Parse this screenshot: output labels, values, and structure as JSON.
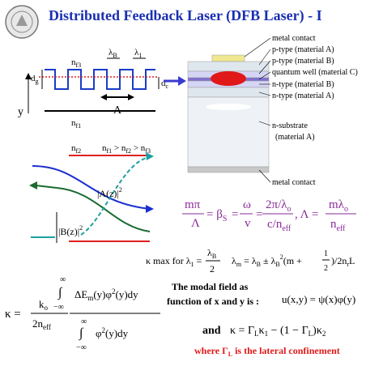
{
  "title": "Distributed Feedback Laser (DFB Laser) - I",
  "grating": {
    "nf3": [
      "n",
      "f3"
    ],
    "lambdaB": [
      "λ",
      "B"
    ],
    "lambda1": [
      "λ",
      "1"
    ],
    "dg": [
      "d",
      "g"
    ],
    "dc": [
      "d",
      "c"
    ],
    "y": "y",
    "period": "Λ",
    "nf1": [
      "n",
      "f1"
    ],
    "nf2": [
      "n",
      "f2"
    ],
    "order": [
      "n",
      "f1",
      " > n",
      "f2",
      " > n",
      "f3"
    ]
  },
  "layers": [
    "metal contact",
    "p-type (material A)",
    "p-type (material B)",
    "quantum well (material C)",
    "n-type (material B)",
    "n-type (material A)",
    "n-substrate",
    "(material A)",
    "metal contact"
  ],
  "modes": {
    "A": [
      "|A(z)|",
      "2"
    ],
    "B": [
      "|B(z)|",
      "2"
    ]
  },
  "eq_phase": [
    "mπ",
    "Λ",
    "= β",
    "S",
    "=",
    "ω",
    "v",
    "=",
    "2π/λ",
    "o",
    "c/n",
    "eff",
    ", Λ =",
    "mλ",
    "o",
    "n",
    "eff"
  ],
  "eq_max": [
    "κ max for λ",
    "1",
    " = ",
    "λ",
    "B",
    "2",
    "λ",
    "m",
    " = λ",
    "B",
    " ± λ",
    "B",
    "2",
    "(m + ",
    "1",
    "2",
    ")",
    "/2n",
    "r",
    "L"
  ],
  "kappa": [
    "κ =",
    "k",
    "o",
    "2n",
    "eff",
    "∞",
    "∫",
    "−∞",
    "ΔE",
    "m",
    "(y)φ",
    "2",
    "(y)dy",
    "∞",
    "∫",
    "−∞",
    "φ",
    "2",
    "(y)dy"
  ],
  "modal": [
    "The modal field as",
    "function of x and y is :",
    "u(x,y) = ψ(x)φ(y)"
  ],
  "coupling": [
    "and",
    "κ = Γ",
    "L",
    "κ",
    "1",
    " − (1 − Γ",
    "L",
    ")κ",
    "2"
  ],
  "note": [
    "where Γ",
    "L",
    " is the lateral confinement"
  ]
}
